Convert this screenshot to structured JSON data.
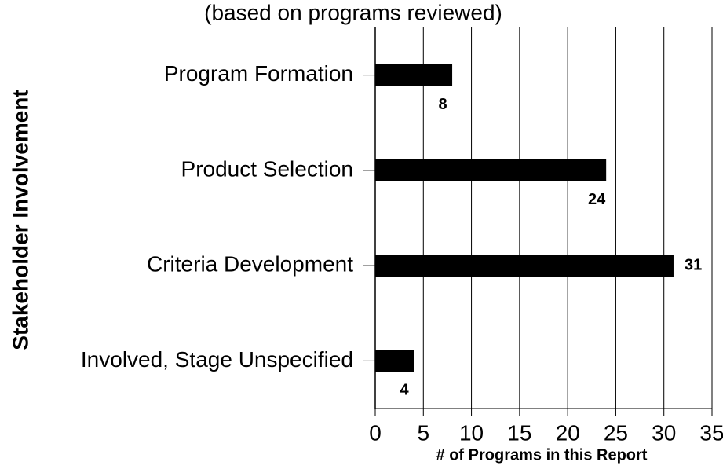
{
  "chart_data": {
    "type": "bar",
    "orientation": "horizontal",
    "subtitle": "(based on programs reviewed)",
    "y_label": "Stakeholder Involvement",
    "x_label": "# of Programs in this Report",
    "categories": [
      "Program Formation",
      "Product Selection",
      "Criteria Development",
      "Involved, Stage Unspecified"
    ],
    "values": [
      8,
      24,
      31,
      4
    ],
    "color": "#000000",
    "xlim": [
      0,
      35
    ],
    "xticks": [
      0,
      5,
      10,
      15,
      20,
      25,
      30,
      35
    ],
    "grid": true
  }
}
